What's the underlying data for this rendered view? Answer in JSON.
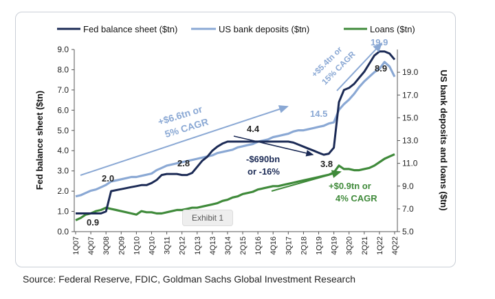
{
  "source": "Source: Federal Reserve, FDIC, Goldman Sachs Global Investment Research",
  "exhibit_badge": "Exhibit 1",
  "colors": {
    "fed": "#1b2a55",
    "deposits": "#8aa8d4",
    "loans": "#3f8a3a",
    "axis": "#555555"
  },
  "chart_data": {
    "type": "line",
    "x": [
      "1Q07",
      "2Q07",
      "3Q07",
      "4Q07",
      "1Q08",
      "2Q08",
      "3Q08",
      "4Q08",
      "1Q09",
      "2Q09",
      "3Q09",
      "4Q09",
      "1Q10",
      "2Q10",
      "3Q10",
      "4Q10",
      "1Q11",
      "2Q11",
      "3Q11",
      "4Q11",
      "1Q12",
      "2Q12",
      "3Q12",
      "4Q12",
      "1Q13",
      "2Q13",
      "3Q13",
      "4Q13",
      "1Q14",
      "2Q14",
      "3Q14",
      "4Q14",
      "1Q15",
      "2Q15",
      "3Q15",
      "4Q15",
      "1Q16",
      "2Q16",
      "3Q16",
      "4Q16",
      "1Q17",
      "2Q17",
      "3Q17",
      "4Q17",
      "1Q18",
      "2Q18",
      "3Q18",
      "4Q18",
      "1Q19",
      "2Q19",
      "3Q19",
      "4Q19",
      "1Q20",
      "2Q20",
      "3Q20",
      "4Q20",
      "1Q21",
      "2Q21",
      "3Q21",
      "4Q21",
      "1Q22",
      "2Q22",
      "3Q22",
      "4Q22"
    ],
    "x_tick_labels": [
      "1Q07",
      "4Q07",
      "3Q08",
      "2Q09",
      "1Q10",
      "4Q10",
      "3Q11",
      "2Q12",
      "1Q13",
      "4Q13",
      "3Q14",
      "2Q15",
      "1Q16",
      "4Q16",
      "3Q17",
      "2Q18",
      "1Q19",
      "4Q19",
      "3Q20",
      "2Q21",
      "1Q22",
      "4Q22"
    ],
    "y_left": {
      "label": "Fed balance sheet ($tn)",
      "ylim": [
        0,
        9
      ],
      "ticks": [
        "0.0",
        "1.0",
        "2.0",
        "3.0",
        "4.0",
        "5.0",
        "6.0",
        "7.0",
        "8.0",
        "9.0"
      ]
    },
    "y_right": {
      "label": "US bank deposits and loans ($tn)",
      "ylim": [
        5,
        21
      ],
      "ticks": [
        "5.0",
        "7.0",
        "9.0",
        "11.0",
        "13.0",
        "15.0",
        "17.0",
        "19.0"
      ]
    },
    "series": [
      {
        "name": "Fed balance sheet ($tn)",
        "axis": "left",
        "color": "#1b2a55",
        "values": [
          0.9,
          0.9,
          0.9,
          0.9,
          0.9,
          0.9,
          1.0,
          2.0,
          2.05,
          2.1,
          2.15,
          2.2,
          2.25,
          2.3,
          2.3,
          2.4,
          2.55,
          2.8,
          2.85,
          2.85,
          2.85,
          2.8,
          2.8,
          2.9,
          3.2,
          3.5,
          3.7,
          4.0,
          4.2,
          4.35,
          4.45,
          4.45,
          4.45,
          4.45,
          4.45,
          4.45,
          4.45,
          4.45,
          4.45,
          4.45,
          4.45,
          4.45,
          4.45,
          4.4,
          4.3,
          4.2,
          4.1,
          4.0,
          3.9,
          3.8,
          3.85,
          4.15,
          6.4,
          7.0,
          7.1,
          7.3,
          7.6,
          7.9,
          8.3,
          8.7,
          8.9,
          8.9,
          8.8,
          8.5
        ]
      },
      {
        "name": "US bank deposits ($tn)",
        "axis": "right",
        "color": "#8aa8d4",
        "values": [
          8.1,
          8.2,
          8.4,
          8.6,
          8.7,
          8.9,
          9.1,
          9.4,
          9.5,
          9.6,
          9.7,
          9.8,
          9.8,
          9.9,
          10.0,
          10.1,
          10.4,
          10.6,
          10.8,
          10.9,
          11.0,
          11.1,
          11.2,
          11.3,
          11.4,
          11.5,
          11.6,
          11.7,
          11.9,
          12.0,
          12.1,
          12.2,
          12.4,
          12.5,
          12.6,
          12.7,
          12.9,
          13.0,
          13.1,
          13.3,
          13.4,
          13.5,
          13.6,
          13.8,
          13.9,
          13.9,
          14.0,
          14.1,
          14.2,
          14.3,
          14.5,
          14.6,
          15.7,
          16.2,
          16.6,
          17.1,
          17.7,
          18.2,
          18.6,
          19.0,
          19.3,
          19.9,
          19.5,
          18.6
        ]
      },
      {
        "name": "Loans ($tn)",
        "axis": "right",
        "color": "#3f8a3a",
        "values": [
          6.0,
          6.2,
          6.5,
          6.6,
          6.8,
          6.9,
          7.1,
          7.0,
          6.9,
          6.8,
          6.7,
          6.6,
          6.5,
          6.8,
          6.7,
          6.7,
          6.6,
          6.6,
          6.7,
          6.8,
          6.9,
          6.9,
          7.0,
          7.1,
          7.1,
          7.2,
          7.3,
          7.4,
          7.5,
          7.7,
          7.8,
          8.0,
          8.1,
          8.3,
          8.4,
          8.5,
          8.7,
          8.8,
          8.9,
          9.0,
          9.0,
          9.1,
          9.2,
          9.3,
          9.4,
          9.5,
          9.6,
          9.7,
          9.8,
          9.9,
          10.0,
          10.2,
          10.8,
          10.5,
          10.5,
          10.4,
          10.4,
          10.5,
          10.6,
          10.8,
          11.1,
          11.4,
          11.6,
          11.8
        ]
      }
    ],
    "data_labels": {
      "fed_2008": "2.0",
      "fed_2007": "0.9",
      "fed_2012": "2.8",
      "fed_2014": "4.4",
      "fed_2019": "3.8",
      "fed_2022": "8.9",
      "dep_2019": "14.5",
      "dep_2022": "19.9"
    },
    "annotations": {
      "dep_growth_1": "+$6.6tn or",
      "dep_growth_2": "5% CAGR",
      "dep_growth_covid_1": "+$5.4tn or",
      "dep_growth_covid_2": "15% CAGR",
      "fed_qt_1": "-$690bn",
      "fed_qt_2": "or -16%",
      "loan_growth_1": "+$0.9tn or",
      "loan_growth_2": "4% CAGR"
    },
    "legend_position": "top"
  }
}
